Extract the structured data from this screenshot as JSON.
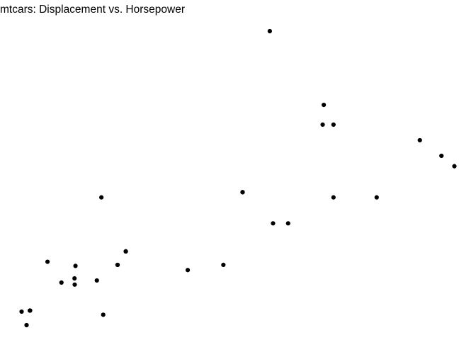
{
  "chart_data": {
    "type": "scatter",
    "title": "mtcars: Displacement vs. Horsepower",
    "xlabel": "",
    "ylabel": "",
    "x_field": "disp",
    "y_field": "hp",
    "xlim": [
      71.1,
      472
    ],
    "ylim": [
      52,
      335
    ],
    "grid": false,
    "point_color": "#000000",
    "points": [
      {
        "x": 160,
        "y": 110
      },
      {
        "x": 160,
        "y": 110
      },
      {
        "x": 108,
        "y": 93
      },
      {
        "x": 258,
        "y": 110
      },
      {
        "x": 360,
        "y": 175
      },
      {
        "x": 225,
        "y": 105
      },
      {
        "x": 360,
        "y": 245
      },
      {
        "x": 146.7,
        "y": 62
      },
      {
        "x": 140.8,
        "y": 95
      },
      {
        "x": 167.6,
        "y": 123
      },
      {
        "x": 167.6,
        "y": 123
      },
      {
        "x": 275.8,
        "y": 180
      },
      {
        "x": 275.8,
        "y": 180
      },
      {
        "x": 275.8,
        "y": 180
      },
      {
        "x": 472,
        "y": 205
      },
      {
        "x": 460,
        "y": 215
      },
      {
        "x": 440,
        "y": 230
      },
      {
        "x": 78.7,
        "y": 66
      },
      {
        "x": 75.7,
        "y": 52
      },
      {
        "x": 71.1,
        "y": 65
      },
      {
        "x": 120.1,
        "y": 97
      },
      {
        "x": 318,
        "y": 150
      },
      {
        "x": 304,
        "y": 150
      },
      {
        "x": 350,
        "y": 245
      },
      {
        "x": 400,
        "y": 175
      },
      {
        "x": 79,
        "y": 66
      },
      {
        "x": 120.3,
        "y": 91
      },
      {
        "x": 95.1,
        "y": 113
      },
      {
        "x": 351,
        "y": 264
      },
      {
        "x": 145,
        "y": 175
      },
      {
        "x": 301,
        "y": 335
      },
      {
        "x": 121,
        "y": 109
      }
    ]
  }
}
